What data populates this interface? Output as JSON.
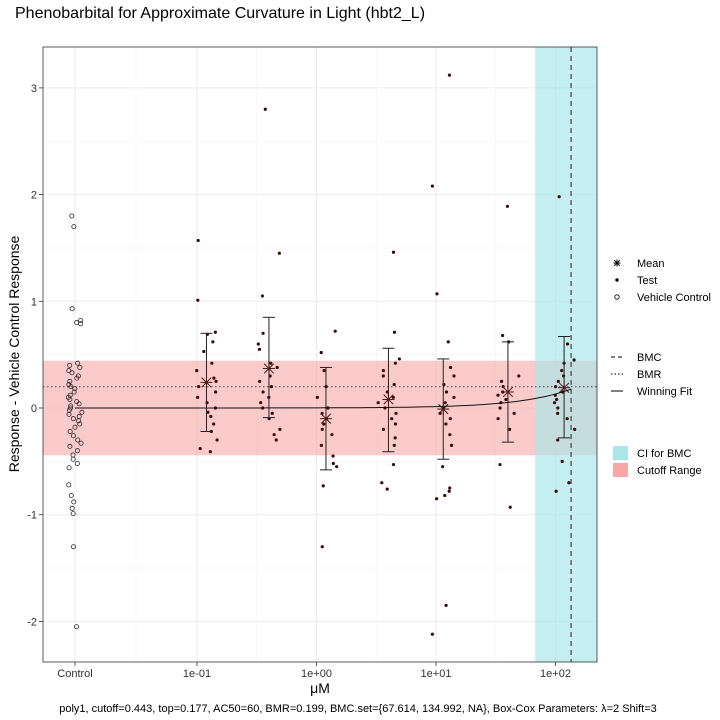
{
  "chart_data": {
    "type": "scatter",
    "title": "Phenobarbital for Approximate Curvature in Light (hbt2_L)",
    "xlabel": "μM",
    "ylabel": "Response - Vehicle Control Response",
    "x_scale": "log10",
    "x_ticks": [
      {
        "label": "Control",
        "log_value": null
      },
      {
        "label": "1e-01",
        "log_value": -1
      },
      {
        "label": "1e+00",
        "log_value": 0
      },
      {
        "label": "1e+01",
        "log_value": 1
      },
      {
        "label": "1e+02",
        "log_value": 2
      }
    ],
    "y_ticks": [
      -2,
      -1,
      0,
      1,
      2,
      3
    ],
    "ylim": [
      -2.35,
      3.4
    ],
    "grid": true,
    "legend_position": "right",
    "legend_points": {
      "title": "",
      "items": [
        {
          "label": "Mean",
          "symbol": "asterisk"
        },
        {
          "label": "Test",
          "symbol": "dot"
        },
        {
          "label": "Vehicle Control",
          "symbol": "open-circle"
        }
      ]
    },
    "legend_lines": {
      "title": "",
      "items": [
        {
          "label": "BMC",
          "style": "dashed"
        },
        {
          "label": "BMR",
          "style": "dotted"
        },
        {
          "label": "Winning Fit",
          "style": "solid"
        }
      ]
    },
    "legend_fills": {
      "title": "",
      "items": [
        {
          "label": "CI for BMC",
          "color": "#a8e6ea"
        },
        {
          "label": "Cutoff Range",
          "color": "#f9a8a8"
        }
      ]
    },
    "colors": {
      "ci_fill": "#a8e6ea",
      "cutoff_fill": "#f9a8a8",
      "points": "#3a0a0a"
    },
    "cutoff": 0.443,
    "bmr": 0.199,
    "bmc": 134.992,
    "bmc_ci": [
      67.614,
      200
    ],
    "fit": {
      "model": "poly1",
      "top": 0.177,
      "ac50": 60,
      "x_min": 0.1,
      "x_max": 134.992
    },
    "vehicle_control": {
      "label": "Control",
      "values": [
        1.8,
        1.7,
        0.93,
        0.82,
        0.8,
        0.79,
        0.42,
        0.4,
        0.38,
        0.35,
        0.33,
        0.3,
        0.28,
        0.25,
        0.22,
        0.2,
        0.18,
        0.15,
        0.12,
        0.1,
        0.08,
        0.06,
        0.04,
        0.02,
        0.0,
        -0.02,
        -0.04,
        -0.06,
        -0.08,
        -0.1,
        -0.12,
        -0.15,
        -0.18,
        -0.22,
        -0.26,
        -0.3,
        -0.33,
        -0.36,
        -0.4,
        -0.44,
        -0.48,
        -0.52,
        -0.56,
        -0.72,
        -0.82,
        -0.88,
        -0.94,
        -0.99,
        -1.3,
        -2.05
      ]
    },
    "test_groups": [
      {
        "conc": 0.12,
        "mean": 0.24,
        "err_hi": 0.7,
        "err_lo": -0.22,
        "values": [
          1.57,
          1.01,
          0.71,
          0.69,
          0.62,
          0.53,
          0.42,
          0.35,
          0.28,
          0.25,
          0.2,
          0.15,
          0.1,
          0.05,
          0.0,
          -0.04,
          -0.08,
          -0.15,
          -0.22,
          -0.3,
          -0.38,
          -0.41
        ]
      },
      {
        "conc": 0.4,
        "mean": 0.37,
        "err_hi": 0.85,
        "err_lo": -0.09,
        "values": [
          2.8,
          1.45,
          1.05,
          0.7,
          0.6,
          0.55,
          0.42,
          0.38,
          0.3,
          0.25,
          0.2,
          0.15,
          0.1,
          0.05,
          0.0,
          -0.05,
          -0.1,
          -0.2,
          -0.25,
          -0.3
        ]
      },
      {
        "conc": 1.2,
        "mean": -0.1,
        "err_hi": 0.38,
        "err_lo": -0.58,
        "values": [
          0.72,
          0.52,
          0.35,
          0.2,
          0.1,
          0.0,
          -0.05,
          -0.1,
          -0.15,
          -0.2,
          -0.25,
          -0.35,
          -0.45,
          -0.52,
          -0.55,
          -0.73,
          -1.3
        ]
      },
      {
        "conc": 4.0,
        "mean": 0.08,
        "err_hi": 0.56,
        "err_lo": -0.41,
        "values": [
          1.46,
          0.71,
          0.46,
          0.42,
          0.35,
          0.3,
          0.22,
          0.15,
          0.1,
          0.05,
          0.0,
          -0.05,
          -0.1,
          -0.15,
          -0.2,
          -0.28,
          -0.35,
          -0.53,
          -0.7,
          -0.76
        ]
      },
      {
        "conc": 11.5,
        "mean": -0.01,
        "err_hi": 0.46,
        "err_lo": -0.48,
        "values": [
          3.12,
          2.08,
          1.07,
          0.62,
          0.38,
          0.3,
          0.22,
          0.15,
          0.1,
          0.05,
          0.0,
          -0.05,
          -0.1,
          -0.15,
          -0.25,
          -0.35,
          -0.55,
          -0.75,
          -0.78,
          -0.82,
          -0.85,
          -1.85,
          -2.12
        ]
      },
      {
        "conc": 40.0,
        "mean": 0.15,
        "err_hi": 0.62,
        "err_lo": -0.32,
        "values": [
          1.89,
          0.68,
          0.62,
          0.3,
          0.25,
          0.2,
          0.15,
          0.12,
          0.08,
          0.05,
          0.0,
          -0.05,
          -0.1,
          -0.2,
          -0.53,
          -0.93
        ]
      },
      {
        "conc": 118.0,
        "mean": 0.19,
        "err_hi": 0.67,
        "err_lo": -0.28,
        "values": [
          1.98,
          0.6,
          0.45,
          0.42,
          0.35,
          0.3,
          0.25,
          0.2,
          0.15,
          0.12,
          0.08,
          0.05,
          0.0,
          -0.05,
          -0.1,
          -0.2,
          -0.3,
          -0.5,
          -0.7,
          -0.78
        ]
      }
    ],
    "caption": "poly1, cutoff=0.443, top=0.177, AC50=60, BMR=0.199, BMC.set={67.614, 134.992, NA}, Box-Cox Parameters: λ=2 Shift=3"
  }
}
